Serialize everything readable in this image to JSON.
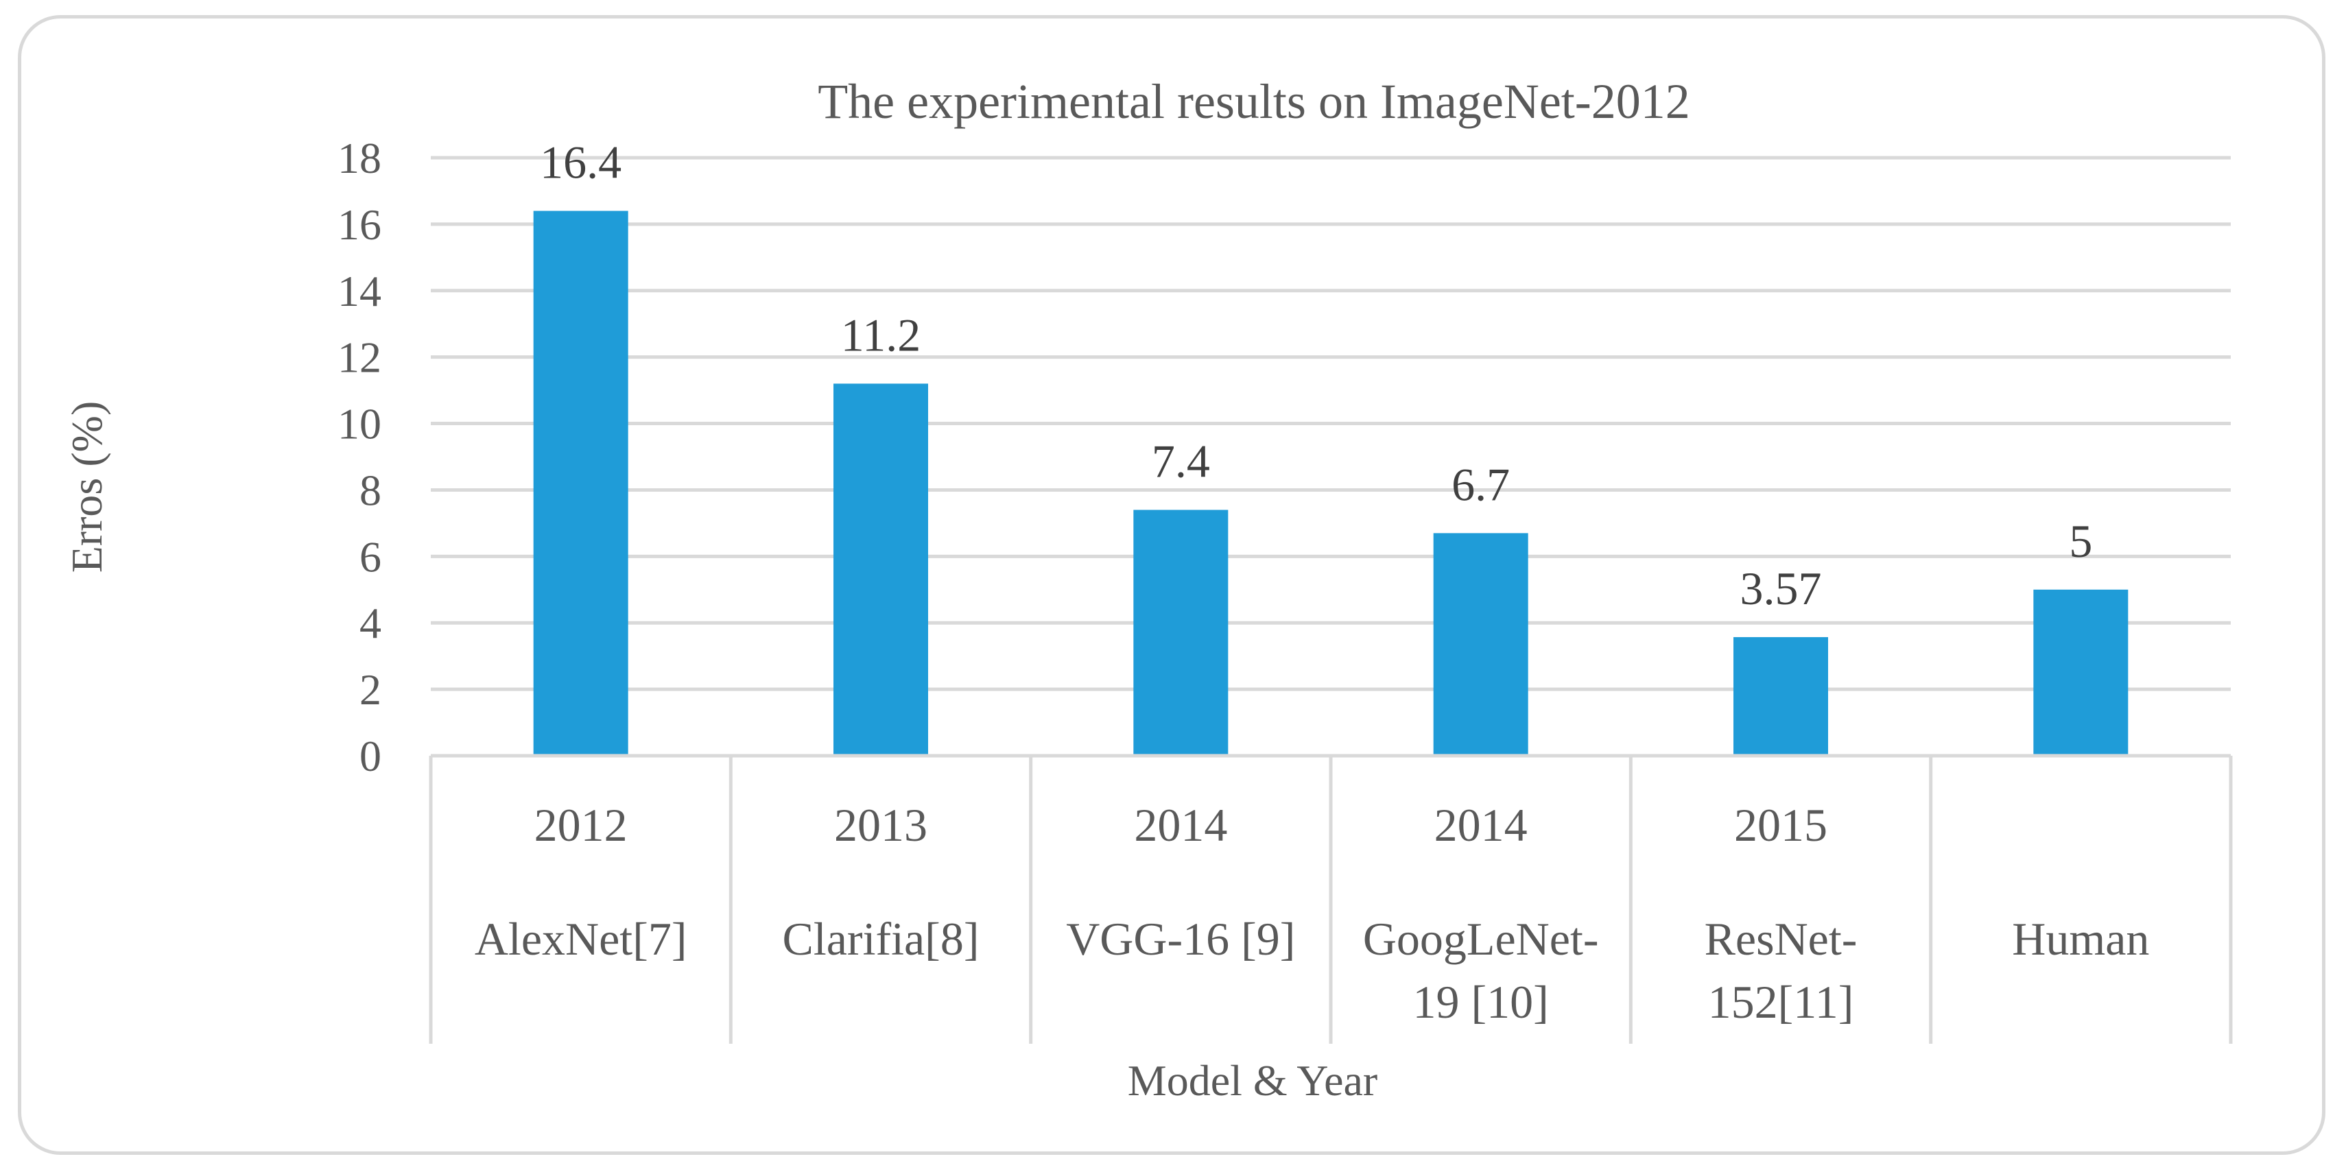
{
  "chart_data": {
    "type": "bar",
    "title": "The experimental results on ImageNet-2012",
    "xlabel": "Model & Year",
    "ylabel": "Erros (%)",
    "ylim": [
      0,
      18
    ],
    "yticks": [
      "0",
      "2",
      "4",
      "6",
      "8",
      "10",
      "12",
      "14",
      "16",
      "18"
    ],
    "grid": true,
    "categories": [
      {
        "year": "2012",
        "model": [
          "AlexNet[7]"
        ]
      },
      {
        "year": "2013",
        "model": [
          "Clarifia[8]"
        ]
      },
      {
        "year": "2014",
        "model": [
          "VGG-16 [9]"
        ]
      },
      {
        "year": "2014",
        "model": [
          "GoogLeNet-",
          "19 [10]"
        ]
      },
      {
        "year": "2015",
        "model": [
          "ResNet-",
          "152[11]"
        ]
      },
      {
        "year": "",
        "model": [
          "Human"
        ]
      }
    ],
    "values": [
      16.4,
      11.2,
      7.4,
      6.7,
      3.57,
      5
    ],
    "value_labels": [
      "16.4",
      "11.2",
      "7.4",
      "6.7",
      "3.57",
      "5"
    ]
  },
  "colors": {
    "bar": "#1f9cd8",
    "grid": "#d9d9d9",
    "text": "#595959",
    "label": "#404040",
    "frame": "#d9d9d9"
  }
}
